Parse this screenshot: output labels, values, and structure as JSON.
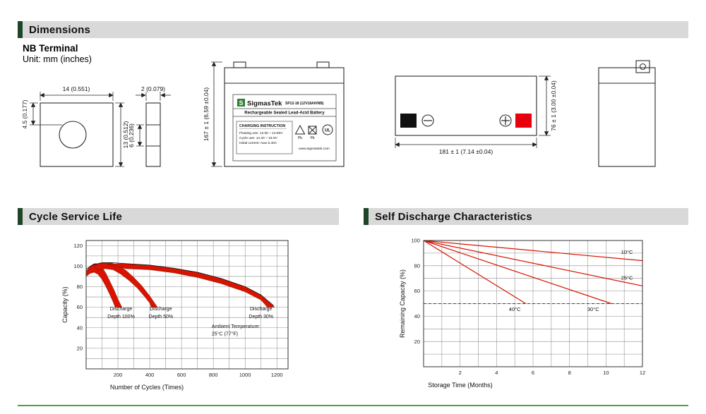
{
  "sections": {
    "dimensions": "Dimensions",
    "cycle": "Cycle Service Life",
    "self_discharge": "Self Discharge Characteristics"
  },
  "dimensions": {
    "terminal_title": "NB Terminal",
    "unit_label": "Unit: mm (inches)",
    "terminal_front": {
      "width": "14 (0.551)",
      "offset": "4.5 (0.177)",
      "height": "13 (0.512)"
    },
    "terminal_side": {
      "thickness": "2 (0.079)",
      "height": "6 (0.236)"
    },
    "battery": {
      "height": "167 ± 1 (6.59 ±0.04)",
      "length": "181 ± 1 (7.14 ±0.04)",
      "width": "76 ± 1 (3.00 ±0.04)"
    },
    "label": {
      "logo_letter": "S",
      "brand": "SigmasTek",
      "model": "SP12-18 (12V18AH/NB)",
      "type_line": "Rechargeable Sealed Lead-Acid Battery",
      "charging_title": "CHARGING INSTRUCTION",
      "charging_line1": "Floating use: 13.50 ~ 13.80V",
      "charging_line2": "Cycle use: 14.40 ~ 15.0V",
      "charging_line3": "Initial current: max 5.40A",
      "website": "www.sigmastek.com",
      "pb": "Pb",
      "ul": "UL"
    }
  },
  "colors": {
    "section_bar": "#d9d9d9",
    "accent_green": "#1e4527",
    "brand_green": "#2e7d32",
    "red": "#d81400",
    "terminal_red": "#e8000d",
    "rule_green": "#4f9d45",
    "axis": "#333333"
  },
  "chart_data": [
    {
      "key": "cycle",
      "type": "area",
      "title": "Cycle Service Life",
      "xlabel": "Number of Cycles (Times)",
      "ylabel": "Capacity (%)",
      "xlim": [
        0,
        1270
      ],
      "ylim": [
        0,
        125
      ],
      "xticks": [
        200,
        400,
        600,
        800,
        1000,
        1200
      ],
      "yticks": [
        20,
        40,
        60,
        80,
        100,
        120
      ],
      "x_minor": 100,
      "y_minor": 10,
      "grid": true,
      "legend": "none",
      "bands": [
        {
          "name": "Discharge Depth 100%",
          "upper": [
            [
              0,
              95
            ],
            [
              25,
              100
            ],
            [
              50,
              102.5
            ],
            [
              75,
              102.5
            ],
            [
              100,
              99
            ],
            [
              125,
              93
            ],
            [
              150,
              85
            ],
            [
              175,
              77
            ],
            [
              200,
              68
            ],
            [
              225,
              60
            ]
          ],
          "lower": [
            [
              0,
              90
            ],
            [
              25,
              93
            ],
            [
              50,
              94
            ],
            [
              75,
              92
            ],
            [
              100,
              87
            ],
            [
              125,
              80
            ],
            [
              150,
              72
            ],
            [
              170,
              65
            ],
            [
              183,
              60
            ]
          ]
        },
        {
          "name": "Discharge Depth 50%",
          "upper": [
            [
              50,
              101
            ],
            [
              100,
              103.5
            ],
            [
              150,
              103.5
            ],
            [
              200,
              101
            ],
            [
              250,
              96
            ],
            [
              300,
              89
            ],
            [
              350,
              81
            ],
            [
              400,
              71
            ],
            [
              440,
              62
            ],
            [
              450,
              60
            ]
          ],
          "lower": [
            [
              70,
              96
            ],
            [
              120,
              97.5
            ],
            [
              170,
              96.5
            ],
            [
              220,
              92
            ],
            [
              270,
              86
            ],
            [
              320,
              79
            ],
            [
              370,
              70
            ],
            [
              400,
              64
            ],
            [
              410,
              60
            ]
          ]
        },
        {
          "name": "Discharge Depth 30%",
          "upper": [
            [
              130,
              102
            ],
            [
              250,
              102.5
            ],
            [
              400,
              101
            ],
            [
              550,
              98
            ],
            [
              700,
              94
            ],
            [
              850,
              88
            ],
            [
              1000,
              80
            ],
            [
              1100,
              72
            ],
            [
              1185,
              60
            ]
          ],
          "lower": [
            [
              250,
              97.5
            ],
            [
              400,
              96.5
            ],
            [
              550,
              93.5
            ],
            [
              700,
              89
            ],
            [
              850,
              83
            ],
            [
              1000,
              75
            ],
            [
              1100,
              67
            ],
            [
              1140,
              60
            ]
          ]
        }
      ],
      "curve": [
        [
          0,
          97
        ],
        [
          40,
          101
        ],
        [
          90,
          103
        ],
        [
          150,
          103.5
        ],
        [
          250,
          102.5
        ],
        [
          400,
          101
        ],
        [
          550,
          98
        ],
        [
          700,
          94
        ],
        [
          850,
          88
        ],
        [
          1000,
          80
        ],
        [
          1100,
          72
        ],
        [
          1180,
          61.5
        ]
      ],
      "annotations": [
        {
          "lines": [
            "Discharge",
            "Depth 100%"
          ],
          "x": 220,
          "y": 57,
          "anchor": "middle"
        },
        {
          "lines": [
            "Discharge",
            "Depth 50%"
          ],
          "x": 470,
          "y": 57,
          "anchor": "middle"
        },
        {
          "lines": [
            "Discharge",
            "Depth 30%"
          ],
          "x": 1100,
          "y": 57,
          "anchor": "middle"
        },
        {
          "lines": [
            "Ambient Temperature:",
            "25°C (77°F)"
          ],
          "x": 790,
          "y": 40,
          "anchor": "start"
        }
      ]
    },
    {
      "key": "self",
      "type": "line",
      "title": "Self Discharge Characteristics",
      "xlabel": "Storage Time (Months)",
      "ylabel": "Remaining Capacity (%)",
      "xlim": [
        0,
        12
      ],
      "ylim": [
        0,
        100
      ],
      "xticks": [
        2,
        4,
        6,
        8,
        10,
        12
      ],
      "yticks": [
        20,
        40,
        60,
        80,
        100
      ],
      "x_minor": 1,
      "y_minor": 10,
      "grid": true,
      "legend": "inline",
      "dashed_line_y": 50,
      "series": [
        {
          "name": "10°C",
          "points": [
            [
              0,
              100
            ],
            [
              12,
              84
            ]
          ],
          "label_at": [
            11.15,
            89.5
          ]
        },
        {
          "name": "25°C",
          "points": [
            [
              0,
              100
            ],
            [
              12,
              64
            ]
          ],
          "label_at": [
            11.15,
            69
          ]
        },
        {
          "name": "30°C",
          "points": [
            [
              0,
              100
            ],
            [
              10.3,
              50
            ]
          ],
          "label_at": [
            9.3,
            44
          ]
        },
        {
          "name": "40°C",
          "points": [
            [
              0,
              100
            ],
            [
              5.6,
              50
            ]
          ],
          "label_at": [
            5.0,
            44
          ]
        }
      ]
    }
  ]
}
